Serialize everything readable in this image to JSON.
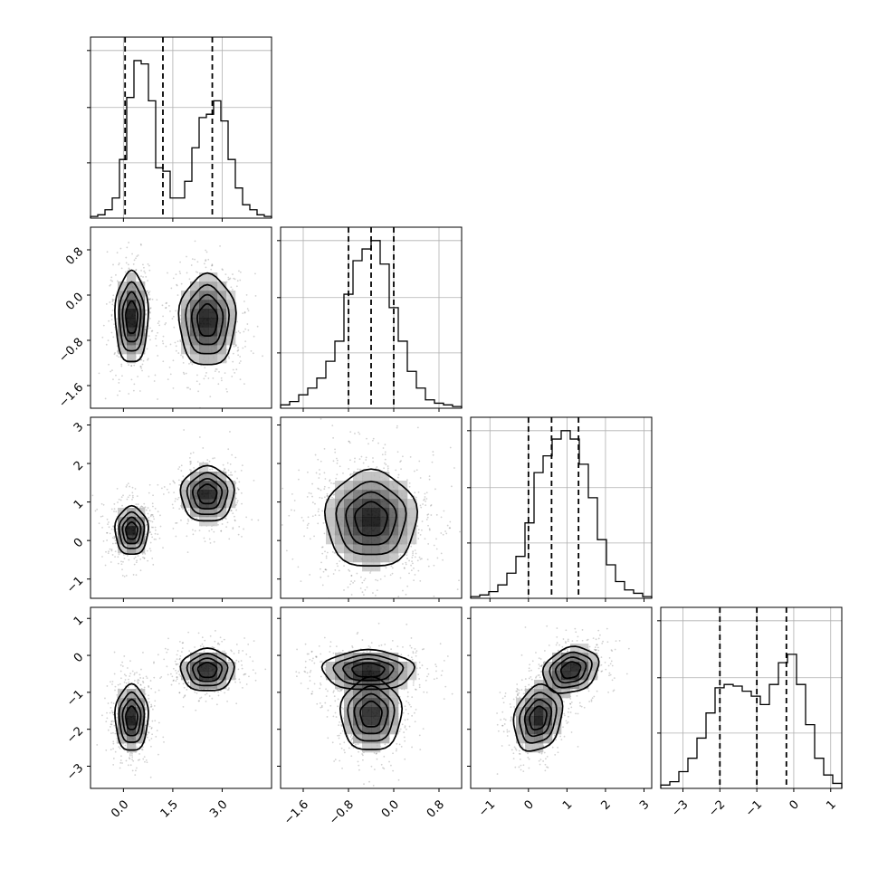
{
  "chart_data": {
    "type": "corner",
    "parameters": [
      {
        "range": [
          -1.0,
          4.5
        ],
        "ticks": [
          0.0,
          1.5,
          3.0
        ],
        "tick_labels": [
          "0.0",
          "1.5",
          "3.0"
        ],
        "quantiles": [
          0.05,
          1.2,
          2.7
        ],
        "hist_edges": [
          -1.0,
          4.5
        ],
        "hist_counts": [
          0.01,
          0.02,
          0.05,
          0.12,
          0.35,
          0.72,
          0.94,
          0.92,
          0.7,
          0.3,
          0.28,
          0.12,
          0.12,
          0.22,
          0.42,
          0.6,
          0.62,
          0.7,
          0.58,
          0.35,
          0.18,
          0.08,
          0.05,
          0.02,
          0.01
        ],
        "modes": [
          {
            "center": 0.25,
            "sd": 0.28,
            "weight": 0.5
          },
          {
            "center": 2.55,
            "sd": 0.48,
            "weight": 0.5
          }
        ]
      },
      {
        "range": [
          -2.0,
          1.2
        ],
        "ticks": [
          -1.6,
          -0.8,
          0.0,
          0.8
        ],
        "tick_labels": [
          "−1.6",
          "−0.8",
          "0.0",
          "0.8"
        ],
        "quantiles": [
          -0.8,
          -0.4,
          0.0
        ],
        "hist_edges": [
          -2.0,
          1.2
        ],
        "hist_counts": [
          0.02,
          0.04,
          0.08,
          0.12,
          0.18,
          0.28,
          0.4,
          0.68,
          0.88,
          0.95,
          1.0,
          0.86,
          0.6,
          0.4,
          0.22,
          0.12,
          0.05,
          0.03,
          0.02,
          0.01
        ],
        "modes": [
          {
            "center": -0.4,
            "sd": 0.45,
            "weight": 1.0
          }
        ]
      },
      {
        "range": [
          -1.5,
          3.2
        ],
        "ticks": [
          -1,
          0,
          1,
          2,
          3
        ],
        "tick_labels": [
          "−1",
          "0",
          "1",
          "2",
          "3"
        ],
        "quantiles": [
          0.0,
          0.6,
          1.3
        ],
        "hist_edges": [
          -1.5,
          3.2
        ],
        "hist_counts": [
          0.01,
          0.02,
          0.04,
          0.08,
          0.15,
          0.25,
          0.45,
          0.75,
          0.85,
          0.95,
          1.0,
          0.95,
          0.8,
          0.6,
          0.35,
          0.2,
          0.1,
          0.05,
          0.03,
          0.01
        ],
        "modes": [
          {
            "center": 0.25,
            "sd": 0.25,
            "weight": 0.5
          },
          {
            "center": 1.2,
            "sd": 0.5,
            "weight": 0.5
          }
        ]
      },
      {
        "range": [
          -3.6,
          1.3
        ],
        "ticks": [
          -3,
          -2,
          -1,
          0,
          1
        ],
        "tick_labels": [
          "−3",
          "−2",
          "−1",
          "0",
          "1"
        ],
        "quantiles": [
          -2.0,
          -1.0,
          -0.2
        ],
        "hist_edges": [
          -3.6,
          1.3
        ],
        "hist_counts": [
          0.02,
          0.04,
          0.1,
          0.18,
          0.3,
          0.45,
          0.6,
          0.62,
          0.61,
          0.58,
          0.55,
          0.5,
          0.62,
          0.75,
          0.8,
          0.62,
          0.38,
          0.18,
          0.08,
          0.03
        ],
        "modes": [
          {
            "center": -1.7,
            "sd": 0.5,
            "weight": 0.5
          },
          {
            "center": -0.35,
            "sd": 0.35,
            "weight": 0.5
          }
        ]
      }
    ],
    "diag_y_ticks": [
      0.33,
      0.66,
      1.0
    ],
    "pair_modes": [
      {
        "i": 1,
        "j": 0,
        "blobs": [
          {
            "cx": 0.25,
            "cy": -0.4,
            "sx": 0.28,
            "sy": 0.45,
            "rho": 0.0
          },
          {
            "cx": 2.55,
            "cy": -0.45,
            "sx": 0.48,
            "sy": 0.45,
            "rho": 0.0
          }
        ]
      },
      {
        "i": 2,
        "j": 0,
        "blobs": [
          {
            "cx": 0.25,
            "cy": 0.25,
            "sx": 0.28,
            "sy": 0.35,
            "rho": 0.0
          },
          {
            "cx": 2.55,
            "cy": 1.2,
            "sx": 0.45,
            "sy": 0.4,
            "rho": 0.0
          }
        ]
      },
      {
        "i": 2,
        "j": 1,
        "blobs": [
          {
            "cx": -0.4,
            "cy": 0.55,
            "sx": 0.45,
            "sy": 0.7,
            "rho": 0.0
          }
        ]
      },
      {
        "i": 3,
        "j": 0,
        "blobs": [
          {
            "cx": 0.25,
            "cy": -1.7,
            "sx": 0.28,
            "sy": 0.5,
            "rho": 0.0
          },
          {
            "cx": 2.55,
            "cy": -0.4,
            "sx": 0.45,
            "sy": 0.32,
            "rho": 0.0
          }
        ]
      },
      {
        "i": 3,
        "j": 1,
        "blobs": [
          {
            "cx": -0.45,
            "cy": -0.4,
            "sx": 0.45,
            "sy": 0.3,
            "rho": 0.0
          },
          {
            "cx": -0.4,
            "cy": -1.6,
            "sx": 0.3,
            "sy": 0.55,
            "rho": 0.0
          }
        ]
      },
      {
        "i": 3,
        "j": 2,
        "blobs": [
          {
            "cx": 0.25,
            "cy": -1.7,
            "sx": 0.35,
            "sy": 0.5,
            "rho": 0.2
          },
          {
            "cx": 1.1,
            "cy": -0.4,
            "sx": 0.4,
            "sy": 0.35,
            "rho": 0.2
          }
        ]
      }
    ],
    "grid": true,
    "xlabel": "",
    "ylabel": "",
    "title": ""
  }
}
